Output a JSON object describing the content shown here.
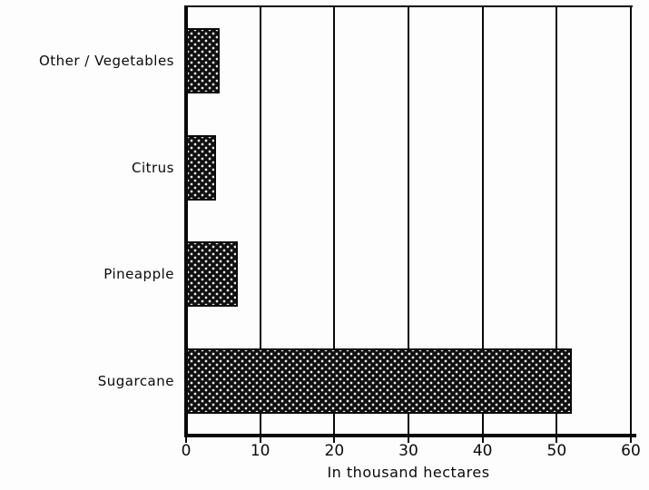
{
  "chart_data": {
    "type": "bar",
    "orientation": "horizontal",
    "title": "",
    "categories": [
      "Other / Vegetables",
      "Citrus",
      "Pineapple",
      "Sugarcane"
    ],
    "values": [
      4.5,
      4,
      7,
      52
    ],
    "xlabel": "In thousand hectares",
    "ylabel": "",
    "x_ticks": [
      0,
      10,
      20,
      30,
      40,
      50,
      60
    ],
    "xlim": [
      0,
      60
    ],
    "grid": "vertical-gridlines-on",
    "legend": "none",
    "bar_style": "black-with-white-stipple-dots",
    "bar_color": "#101010",
    "axis_color": "#0a0a0a",
    "background_color": "#fdfdfd"
  }
}
